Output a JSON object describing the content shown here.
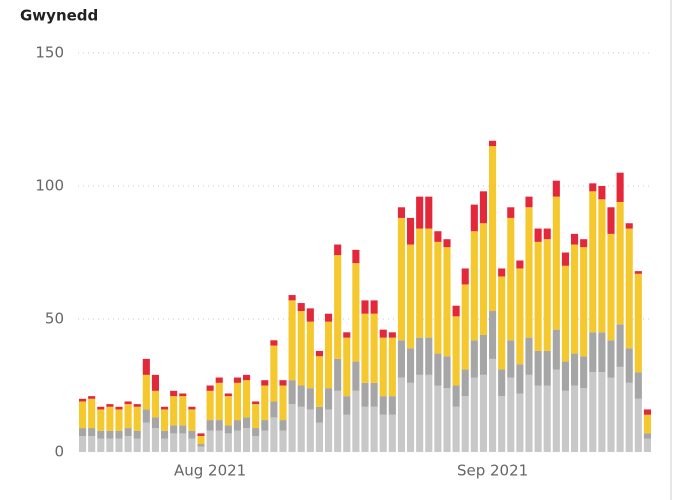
{
  "chart_data": {
    "type": "stacked_bar",
    "title": "Gwynedd",
    "categories": [
      null,
      null,
      null,
      null,
      null,
      null,
      null,
      null,
      null,
      null,
      null,
      null,
      null,
      null,
      "Aug 2021",
      null,
      null,
      null,
      null,
      null,
      null,
      null,
      null,
      null,
      null,
      null,
      null,
      null,
      null,
      null,
      null,
      null,
      null,
      null,
      null,
      null,
      null,
      null,
      null,
      null,
      null,
      null,
      null,
      null,
      null,
      "Sep 2021",
      null,
      null,
      null,
      null,
      null,
      null,
      null,
      null,
      null,
      null,
      null,
      null,
      null,
      null,
      null,
      null,
      null
    ],
    "series": [
      {
        "color": "#c8c8c8",
        "values": [
          6,
          6,
          5,
          5,
          5,
          6,
          5,
          11,
          9,
          5,
          7,
          7,
          5,
          2,
          8,
          8,
          7,
          8,
          9,
          6,
          8,
          13,
          8,
          18,
          17,
          16,
          11,
          16,
          23,
          14,
          23,
          17,
          17,
          14,
          14,
          28,
          26,
          29,
          29,
          25,
          24,
          17,
          21,
          28,
          29,
          35,
          21,
          28,
          22,
          29,
          25,
          25,
          31,
          23,
          25,
          24,
          30,
          30,
          28,
          32,
          26,
          20,
          5
        ]
      },
      {
        "color": "#a6a6a6",
        "values": [
          3,
          3,
          3,
          3,
          3,
          3,
          3,
          5,
          4,
          3,
          3,
          3,
          3,
          1,
          4,
          4,
          3,
          4,
          4,
          3,
          4,
          6,
          4,
          9,
          8,
          8,
          6,
          8,
          12,
          7,
          11,
          9,
          9,
          7,
          7,
          14,
          13,
          14,
          14,
          12,
          12,
          8,
          10,
          14,
          15,
          18,
          10,
          14,
          11,
          14,
          13,
          13,
          15,
          11,
          12,
          12,
          15,
          15,
          14,
          16,
          13,
          10,
          2
        ]
      },
      {
        "color": "#f5c82e",
        "values": [
          10,
          11,
          8,
          9,
          8,
          9,
          9,
          13,
          10,
          8,
          11,
          11,
          8,
          3,
          11,
          14,
          11,
          14,
          14,
          9,
          13,
          21,
          13,
          30,
          28,
          25,
          19,
          25,
          39,
          22,
          37,
          26,
          26,
          22,
          22,
          46,
          39,
          41,
          41,
          42,
          41,
          26,
          32,
          41,
          42,
          62,
          35,
          46,
          36,
          49,
          41,
          42,
          50,
          36,
          41,
          41,
          53,
          50,
          40,
          46,
          45,
          37,
          7
        ]
      },
      {
        "color": "#e3283c",
        "values": [
          1,
          1,
          1,
          1,
          1,
          1,
          1,
          6,
          6,
          1,
          2,
          1,
          1,
          1,
          2,
          2,
          1,
          2,
          2,
          1,
          2,
          2,
          2,
          2,
          3,
          5,
          2,
          3,
          4,
          2,
          5,
          5,
          5,
          3,
          2,
          4,
          10,
          12,
          12,
          4,
          3,
          4,
          6,
          10,
          12,
          2,
          3,
          4,
          3,
          4,
          5,
          4,
          6,
          5,
          4,
          3,
          3,
          5,
          10,
          11,
          2,
          1,
          2
        ]
      }
    ],
    "ylim": [
      0,
      150
    ],
    "yticks": [
      0,
      50,
      100,
      150
    ],
    "grid": true
  }
}
